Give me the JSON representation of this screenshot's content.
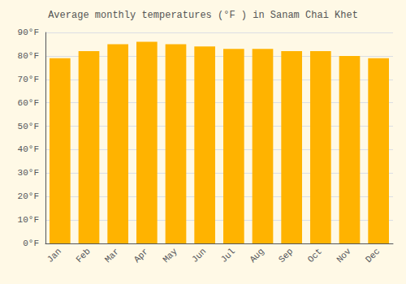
{
  "chart_data": {
    "type": "bar",
    "title": "Average monthly temperatures (°F ) in Sanam Chai Khet",
    "categories": [
      "Jan",
      "Feb",
      "Mar",
      "Apr",
      "May",
      "Jun",
      "Jul",
      "Aug",
      "Sep",
      "Oct",
      "Nov",
      "Dec"
    ],
    "values": [
      79,
      82,
      85,
      86,
      85,
      84,
      83,
      83,
      82,
      82,
      80,
      79
    ],
    "color": "#FFB300",
    "ylim": [
      0,
      90
    ],
    "yticks": [
      {
        "value": 0,
        "label": "0°F"
      },
      {
        "value": 10,
        "label": "10°F"
      },
      {
        "value": 20,
        "label": "20°F"
      },
      {
        "value": 30,
        "label": "30°F"
      },
      {
        "value": 40,
        "label": "40°F"
      },
      {
        "value": 50,
        "label": "50°F"
      },
      {
        "value": 60,
        "label": "60°F"
      },
      {
        "value": 70,
        "label": "70°F"
      },
      {
        "value": 80,
        "label": "80°F"
      },
      {
        "value": 90,
        "label": "90°F"
      }
    ],
    "grid": true
  }
}
